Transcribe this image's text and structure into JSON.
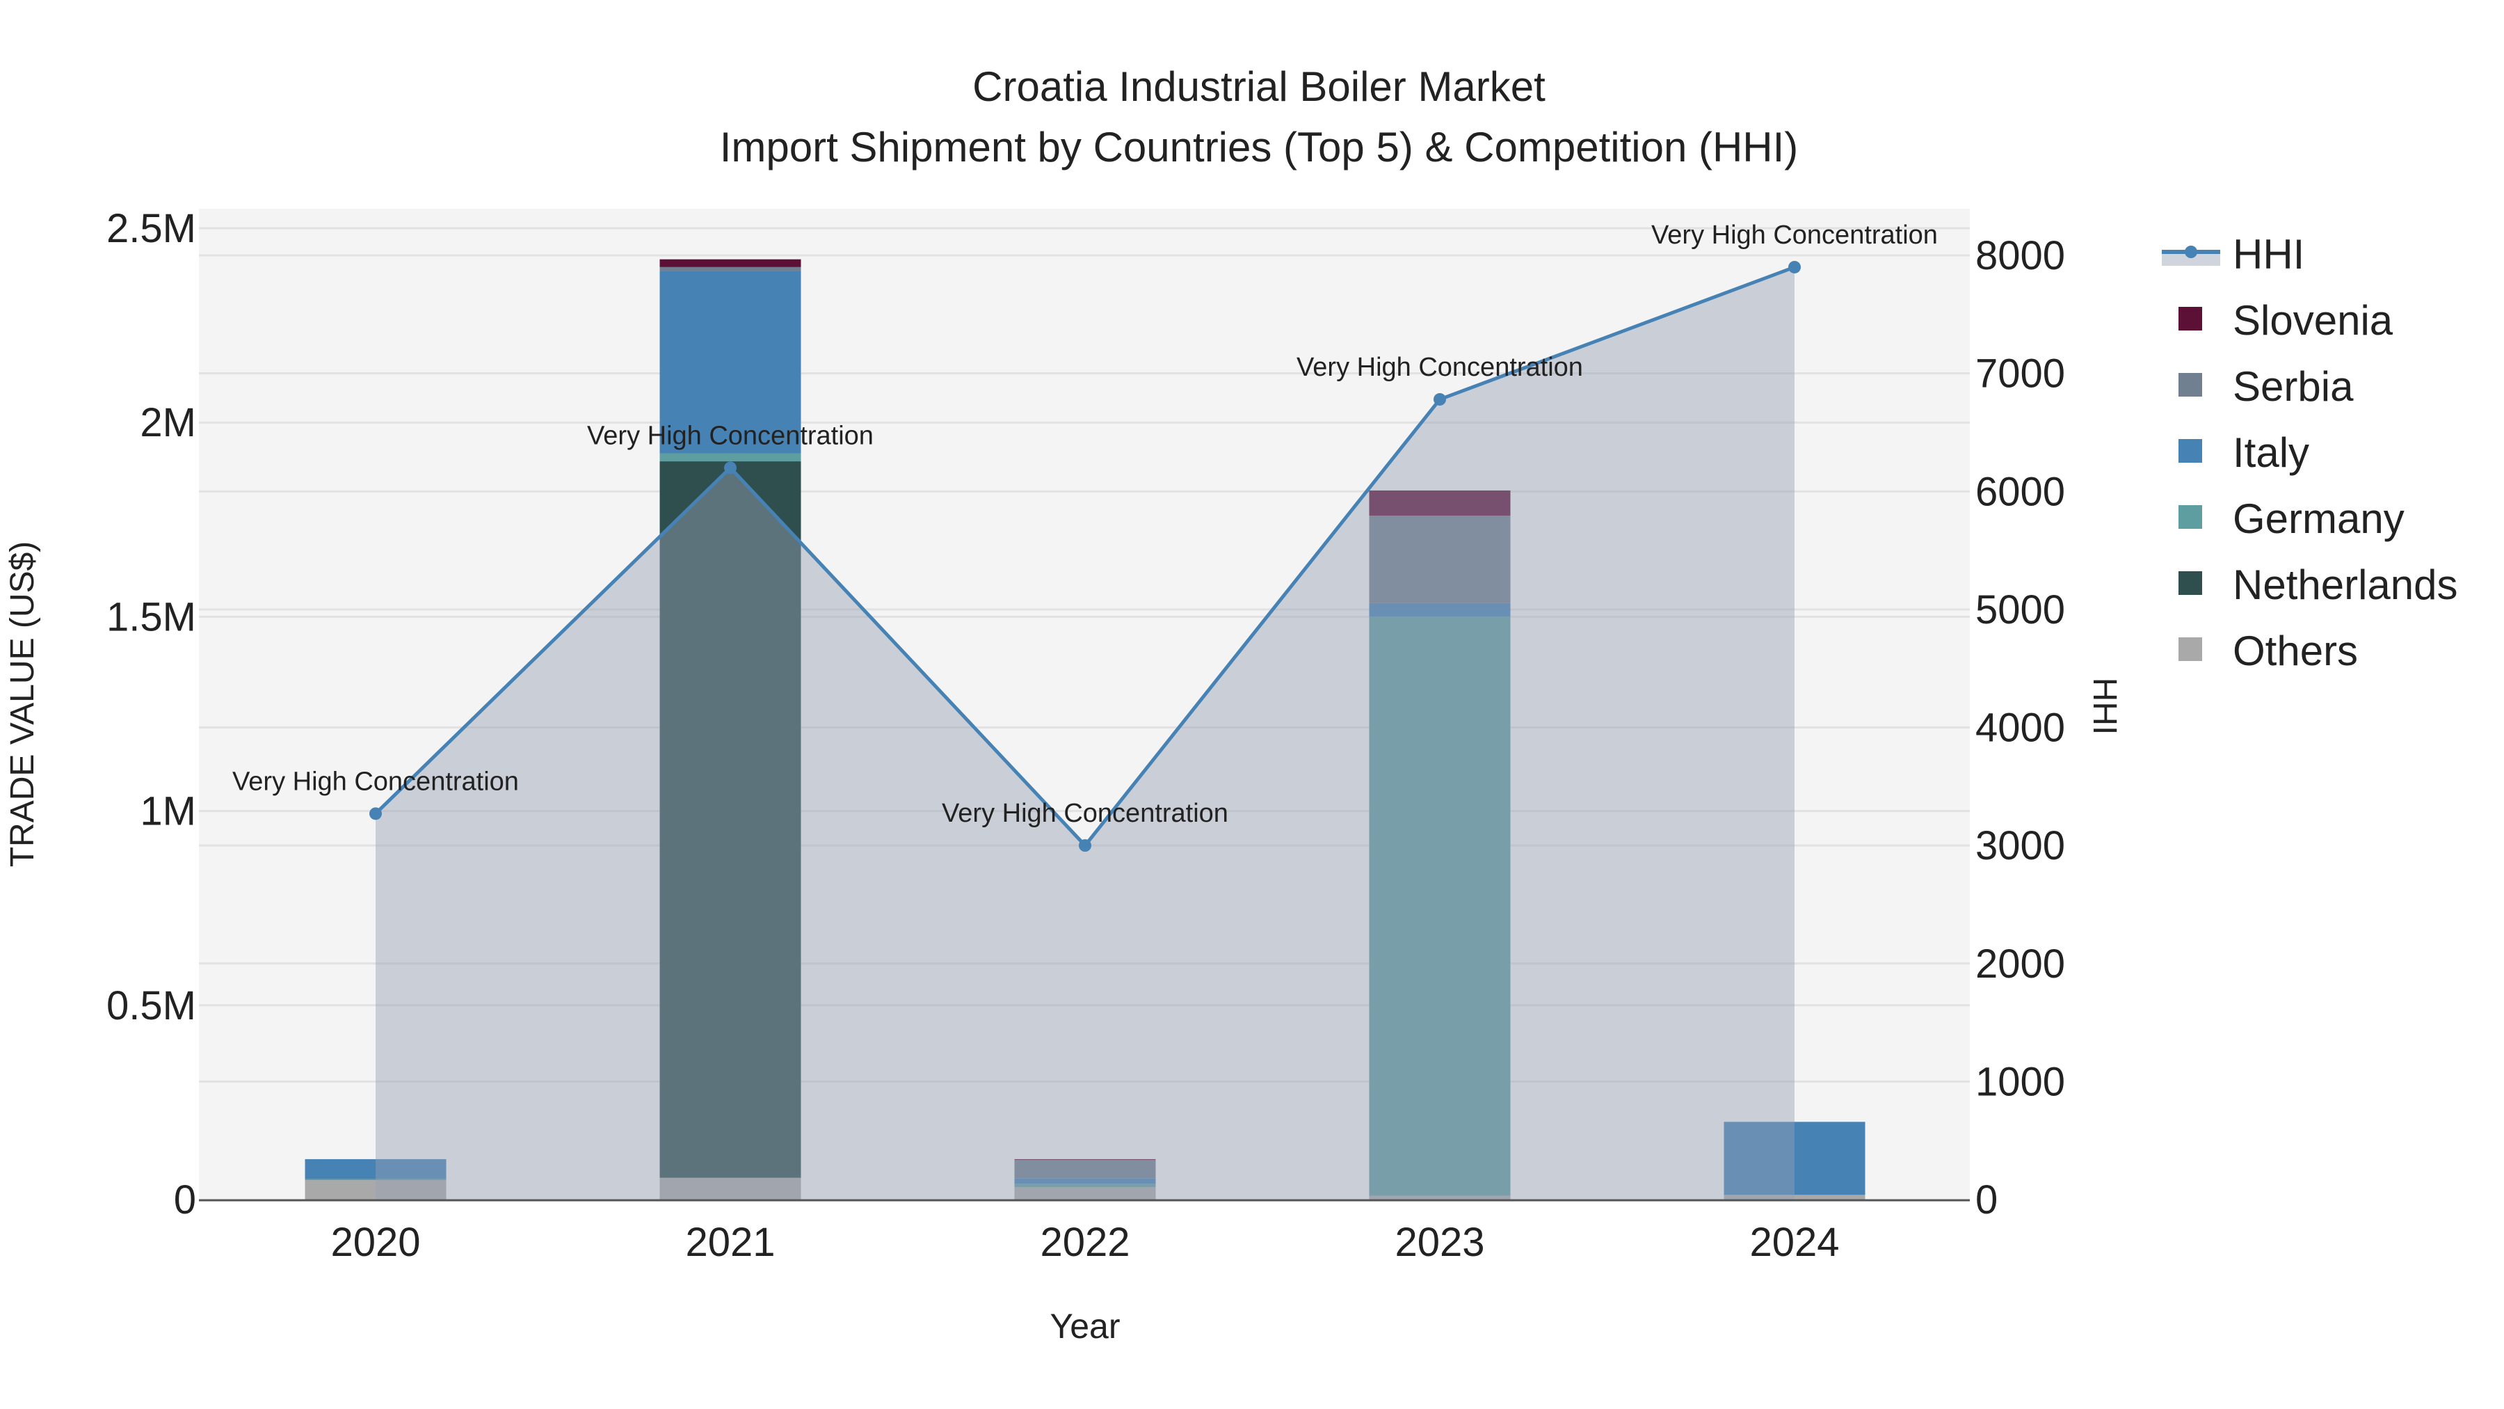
{
  "chart_data": {
    "type": "bar",
    "title": "Croatia Industrial Boiler Market",
    "subtitle": "Import Shipment by Countries (Top 5) & Competition (HHI)",
    "xlabel": "Year",
    "ylabel": "TRADE VALUE (US$)",
    "y2label": "HHI",
    "categories": [
      "2020",
      "2021",
      "2022",
      "2023",
      "2024"
    ],
    "ylim": [
      0,
      2500000
    ],
    "y2lim": [
      0,
      8000
    ],
    "yticks": [
      {
        "v": 0,
        "label": "0"
      },
      {
        "v": 500000,
        "label": "0.5M"
      },
      {
        "v": 1000000,
        "label": "1M"
      },
      {
        "v": 1500000,
        "label": "1.5M"
      },
      {
        "v": 2000000,
        "label": "2M"
      },
      {
        "v": 2500000,
        "label": "2.5M"
      }
    ],
    "y2ticks": [
      0,
      1000,
      2000,
      3000,
      4000,
      5000,
      6000,
      7000,
      8000
    ],
    "stacked": true,
    "series": [
      {
        "name": "Others",
        "color": "#a9a9a9",
        "values": [
          50000,
          56000,
          32000,
          10000,
          12000
        ]
      },
      {
        "name": "Netherlands",
        "color": "#2f4f4f",
        "values": [
          0,
          1844000,
          0,
          0,
          0
        ]
      },
      {
        "name": "Germany",
        "color": "#5f9ea0",
        "values": [
          3000,
          20000,
          9000,
          1490000,
          0
        ]
      },
      {
        "name": "Italy",
        "color": "#4682b4",
        "values": [
          51000,
          470000,
          13000,
          35000,
          188000
        ]
      },
      {
        "name": "Serbia",
        "color": "#708090",
        "values": [
          0,
          10000,
          48000,
          225000,
          0
        ]
      },
      {
        "name": "Slovenia",
        "color": "#5c1035",
        "values": [
          0,
          20000,
          2000,
          65000,
          0
        ]
      }
    ],
    "hhi": {
      "name": "HHI",
      "color": "#4682b4",
      "values": [
        3270,
        6200,
        3000,
        6780,
        7900
      ],
      "annotations": [
        "Very High Concentration",
        "Very High Concentration",
        "Very High Concentration",
        "Very High Concentration",
        "Very High Concentration"
      ]
    },
    "legend_order": [
      "HHI",
      "Slovenia",
      "Serbia",
      "Italy",
      "Germany",
      "Netherlands",
      "Others"
    ],
    "legend_position": "right",
    "grid": true
  }
}
